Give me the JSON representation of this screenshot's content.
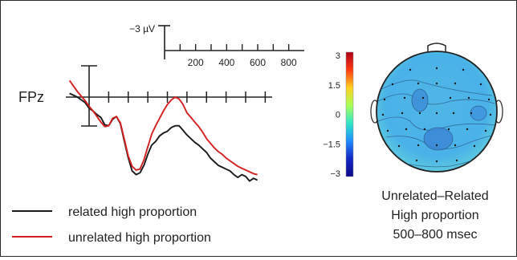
{
  "chart_data": [
    {
      "type": "line",
      "channel_label": "FPz",
      "scale_bar": {
        "amplitude_label": "−3 µV",
        "time_ticks": [
          200,
          400,
          600,
          800
        ]
      },
      "x_unit": "ms",
      "xlim": [
        -100,
        900
      ],
      "ylim_uv": [
        -3,
        4.5
      ],
      "series": [
        {
          "name": "related high proportion",
          "color": "#1a1a1a",
          "x": [
            -100,
            -60,
            -20,
            0,
            20,
            40,
            60,
            80,
            100,
            120,
            140,
            160,
            180,
            200,
            220,
            240,
            260,
            280,
            300,
            320,
            340,
            360,
            380,
            400,
            420,
            440,
            460,
            480,
            500,
            520,
            540,
            560,
            580,
            600,
            620,
            640,
            660,
            680,
            700,
            720,
            740,
            760,
            780,
            800,
            820,
            840,
            860
          ],
          "y": [
            -0.2,
            0.0,
            0.3,
            0.6,
            0.75,
            0.95,
            1.1,
            1.5,
            1.55,
            1.2,
            1.05,
            1.45,
            2.4,
            3.3,
            4.0,
            4.2,
            4.1,
            3.7,
            3.1,
            2.6,
            2.4,
            2.1,
            1.95,
            1.85,
            1.65,
            1.55,
            1.55,
            1.8,
            2.05,
            2.25,
            2.45,
            2.6,
            2.8,
            3.0,
            3.3,
            3.5,
            3.7,
            3.8,
            3.9,
            4.0,
            4.2,
            4.35,
            4.2,
            4.3,
            4.55,
            4.4,
            4.5
          ]
        },
        {
          "name": "unrelated high proportion",
          "color": "#d42020",
          "x": [
            -100,
            -60,
            -20,
            0,
            20,
            40,
            60,
            80,
            100,
            120,
            140,
            160,
            180,
            200,
            220,
            240,
            260,
            280,
            300,
            320,
            340,
            360,
            380,
            400,
            420,
            440,
            460,
            480,
            500,
            520,
            540,
            560,
            580,
            600,
            620,
            640,
            660,
            680,
            700,
            720,
            740,
            760,
            780,
            800,
            820,
            840,
            860
          ],
          "y": [
            -0.9,
            -0.3,
            0.2,
            0.5,
            0.75,
            1.05,
            1.35,
            1.6,
            1.55,
            1.15,
            1.05,
            1.4,
            2.3,
            3.2,
            3.75,
            3.95,
            3.9,
            3.4,
            2.7,
            2.0,
            1.55,
            1.15,
            0.75,
            0.4,
            0.15,
            0.0,
            0.1,
            0.4,
            0.85,
            1.1,
            1.35,
            1.6,
            1.9,
            2.25,
            2.5,
            2.75,
            2.95,
            3.1,
            3.3,
            3.45,
            3.6,
            3.75,
            3.85,
            3.95,
            4.05,
            4.15,
            4.2
          ]
        }
      ]
    },
    {
      "type": "heatmap",
      "subtype": "scalp-topography",
      "colorbar": {
        "ticks": [
          "3",
          "1.5",
          "0",
          "−1.5",
          "−3"
        ],
        "tick_values": [
          3,
          1.5,
          0,
          -1.5,
          -3
        ],
        "colors": [
          "#b00018",
          "#ff3a10",
          "#ffd21e",
          "#a8ff58",
          "#30e6c8",
          "#1f8cff",
          "#1426c4",
          "#0a0a88"
        ]
      },
      "caption": [
        "Unrelated–Related",
        "High proportion",
        "500–800 msec"
      ],
      "dominant_range": [
        -1.5,
        0.5
      ]
    }
  ]
}
